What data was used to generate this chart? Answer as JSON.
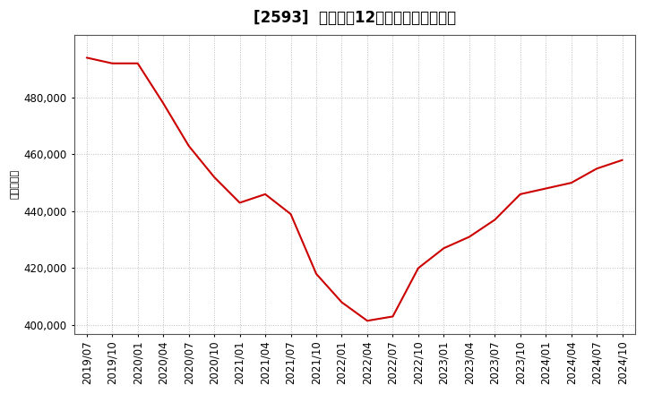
{
  "title": "[2593]  売上高の12か月移動合計の推移",
  "ylabel": "（百万円）",
  "line_color": "#cc0000",
  "background_color": "#ffffff",
  "plot_bg_color": "#ffffff",
  "grid_color": "#bbbbbb",
  "dates": [
    "2019/07",
    "2019/10",
    "2020/01",
    "2020/04",
    "2020/07",
    "2020/10",
    "2021/01",
    "2021/04",
    "2021/07",
    "2021/10",
    "2022/01",
    "2022/04",
    "2022/07",
    "2022/10",
    "2023/01",
    "2023/04",
    "2023/07",
    "2023/10",
    "2024/01",
    "2024/04",
    "2024/07",
    "2024/10"
  ],
  "values": [
    494000,
    492000,
    492000,
    478000,
    463000,
    452000,
    443000,
    446000,
    439000,
    418000,
    408000,
    401500,
    403000,
    420000,
    427000,
    431000,
    437000,
    446000,
    448000,
    450000,
    455000,
    458000
  ],
  "yticks": [
    400000,
    420000,
    440000,
    460000,
    480000
  ],
  "ylim": [
    397000,
    502000
  ],
  "title_fontsize": 12,
  "axis_fontsize": 8.5,
  "ylabel_fontsize": 8
}
